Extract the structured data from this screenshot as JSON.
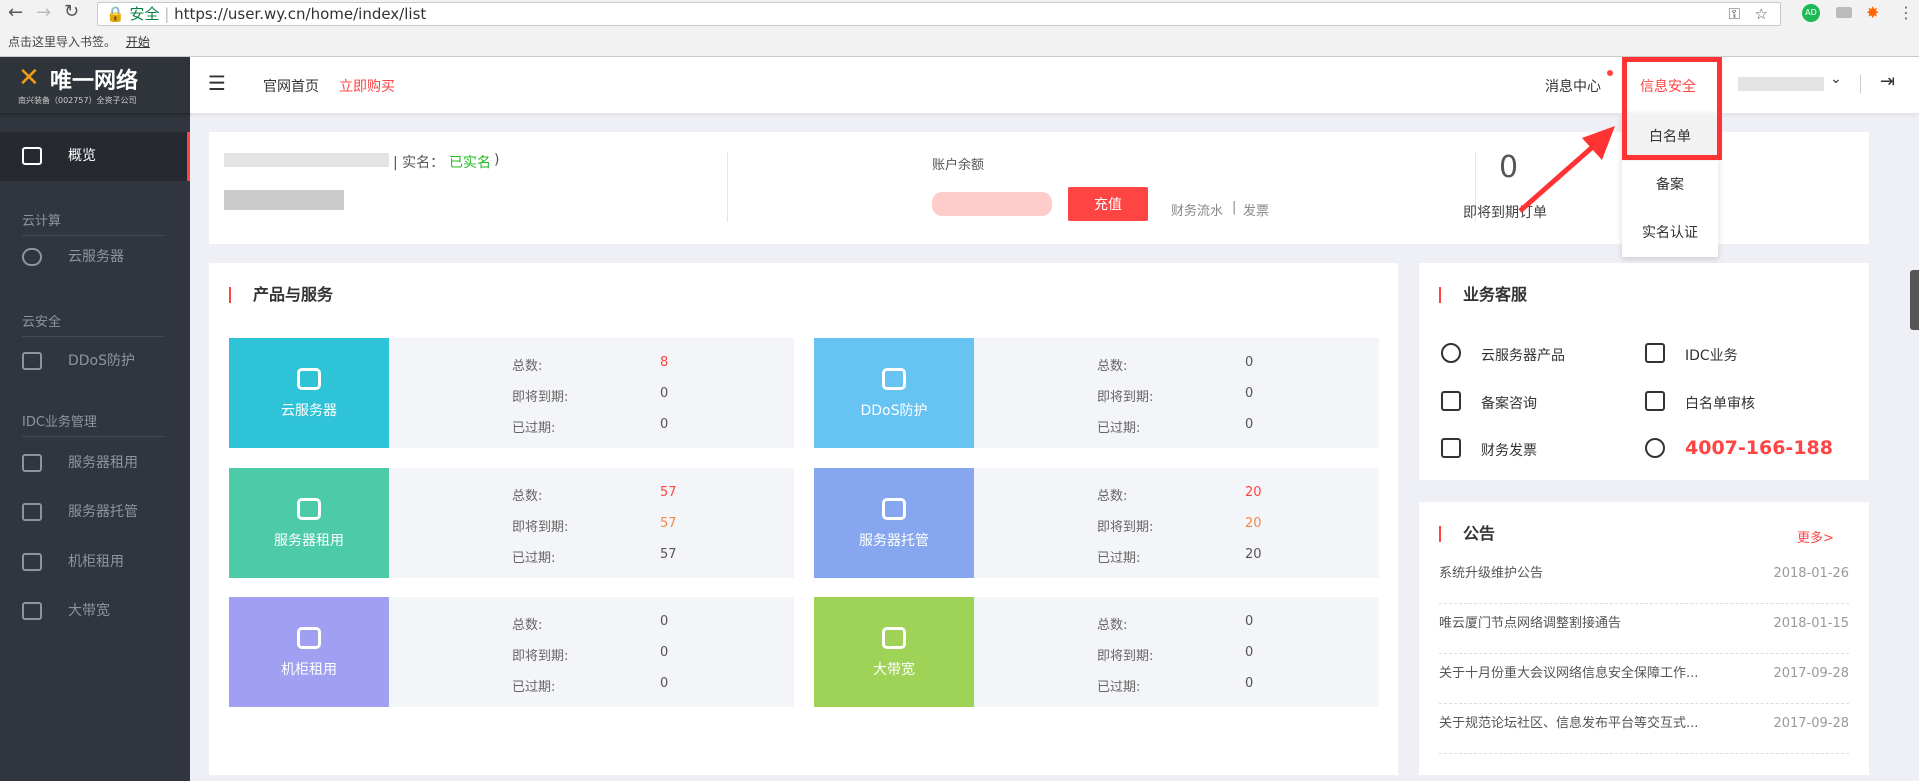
{
  "browser": {
    "secure_label": "安全",
    "url": "https://user.wy.cn/home/index/list",
    "bookmark_hint": "点击这里导入书签。",
    "bookmark_link": "开始",
    "ext_ad": "AD"
  },
  "logo": {
    "name": "唯一网络",
    "subtitle": "南兴装备（002757）全资子公司"
  },
  "sidebar": {
    "overview": "概览",
    "sections": [
      {
        "title": "云计算",
        "items": [
          "云服务器"
        ]
      },
      {
        "title": "云安全",
        "items": [
          "DDoS防护"
        ]
      },
      {
        "title": "IDC业务管理",
        "items": [
          "服务器租用",
          "服务器托管",
          "机柜租用",
          "大带宽"
        ]
      }
    ]
  },
  "header": {
    "home": "官网首页",
    "buy": "立即购买",
    "messages": "消息中心",
    "security": "信息安全"
  },
  "dropdown": [
    "白名单",
    "备案",
    "实名认证"
  ],
  "account": {
    "realname_label": "| 实名：",
    "realname_status": "已实名",
    ")": ")",
    "balance_label": "账户余额",
    "recharge": "充值",
    "flow": "财务流水",
    "invoice": "发票",
    "sep": "|",
    "orders_label": "即将到期订单",
    "orders_value": "0"
  },
  "products": {
    "title": "产品与服务",
    "labels": {
      "total": "总数:",
      "expiring": "即将到期:",
      "expired": "已过期:"
    },
    "items": [
      {
        "name": "云服务器",
        "color": "#2fc3d8",
        "total": "8",
        "expiring": "0",
        "expired": "0"
      },
      {
        "name": "DDoS防护",
        "color": "#66c3f2",
        "total": "0",
        "expiring": "0",
        "expired": "0"
      },
      {
        "name": "服务器租用",
        "color": "#4dcaa8",
        "total": "57",
        "expiring": "57",
        "expired": "57"
      },
      {
        "name": "服务器托管",
        "color": "#86a7f0",
        "total": "20",
        "expiring": "20",
        "expired": "20"
      },
      {
        "name": "机柜租用",
        "color": "#a09ff1",
        "total": "0",
        "expiring": "0",
        "expired": "0"
      },
      {
        "name": "大带宽",
        "color": "#9ed357",
        "total": "0",
        "expiring": "0",
        "expired": "0"
      }
    ]
  },
  "service": {
    "title": "业务客服",
    "items": [
      "云服务器产品",
      "IDC业务",
      "备案咨询",
      "白名单审核",
      "财务发票"
    ],
    "phone": "4007-166-188"
  },
  "notices": {
    "title": "公告",
    "more": "更多>",
    "items": [
      {
        "title": "系统升级维护公告",
        "date": "2018-01-26"
      },
      {
        "title": "唯云厦门节点网络调整割接通告",
        "date": "2018-01-15"
      },
      {
        "title": "关于十月份重大会议网络信息安全保障工作...",
        "date": "2017-09-28"
      },
      {
        "title": "关于规范论坛社区、信息发布平台等交互式...",
        "date": "2017-09-28"
      }
    ]
  },
  "colors": {
    "accent": "#ff4444",
    "sidebar": "#31363e",
    "success": "#22bb22"
  }
}
